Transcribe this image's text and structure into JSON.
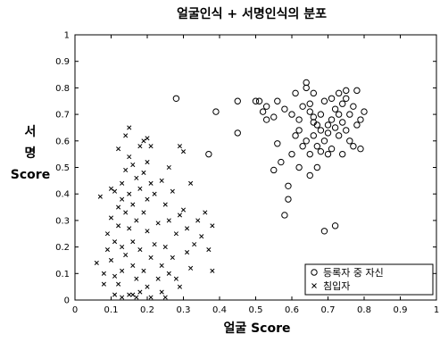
{
  "chart_data": {
    "type": "scatter",
    "title": "얼굴인식 + 서명인식의 분포",
    "xlabel": "얼굴 Score",
    "ylabel": [
      "서",
      "명",
      "Score"
    ],
    "xlim": [
      0,
      1
    ],
    "ylim": [
      0,
      1
    ],
    "x_ticks": [
      "0",
      "0.1",
      "0.2",
      "0.3",
      "0.4",
      "0.5",
      "0.6",
      "0.7",
      "0.8",
      "0.9",
      "1"
    ],
    "y_ticks": [
      "0",
      "0.1",
      "0.2",
      "0.3",
      "0.4",
      "0.5",
      "0.6",
      "0.7",
      "0.8",
      "0.9",
      "1"
    ],
    "grid": false,
    "legend_position": "bottom-right",
    "series": [
      {
        "name": "등록자 중 자신",
        "marker": "circle",
        "color": "#000000",
        "points": [
          [
            0.28,
            0.76
          ],
          [
            0.37,
            0.55
          ],
          [
            0.39,
            0.71
          ],
          [
            0.45,
            0.63
          ],
          [
            0.45,
            0.75
          ],
          [
            0.5,
            0.75
          ],
          [
            0.51,
            0.75
          ],
          [
            0.52,
            0.71
          ],
          [
            0.53,
            0.73
          ],
          [
            0.53,
            0.68
          ],
          [
            0.55,
            0.69
          ],
          [
            0.55,
            0.49
          ],
          [
            0.56,
            0.59
          ],
          [
            0.56,
            0.75
          ],
          [
            0.57,
            0.52
          ],
          [
            0.58,
            0.72
          ],
          [
            0.58,
            0.32
          ],
          [
            0.59,
            0.38
          ],
          [
            0.59,
            0.43
          ],
          [
            0.6,
            0.55
          ],
          [
            0.6,
            0.7
          ],
          [
            0.61,
            0.62
          ],
          [
            0.61,
            0.78
          ],
          [
            0.62,
            0.68
          ],
          [
            0.62,
            0.64
          ],
          [
            0.63,
            0.58
          ],
          [
            0.63,
            0.73
          ],
          [
            0.64,
            0.8
          ],
          [
            0.64,
            0.6
          ],
          [
            0.65,
            0.74
          ],
          [
            0.65,
            0.71
          ],
          [
            0.65,
            0.55
          ],
          [
            0.65,
            0.47
          ],
          [
            0.66,
            0.67
          ],
          [
            0.66,
            0.78
          ],
          [
            0.66,
            0.62
          ],
          [
            0.67,
            0.5
          ],
          [
            0.67,
            0.58
          ],
          [
            0.68,
            0.7
          ],
          [
            0.68,
            0.64
          ],
          [
            0.68,
            0.56
          ],
          [
            0.69,
            0.26
          ],
          [
            0.69,
            0.75
          ],
          [
            0.69,
            0.6
          ],
          [
            0.7,
            0.66
          ],
          [
            0.7,
            0.63
          ],
          [
            0.71,
            0.68
          ],
          [
            0.71,
            0.76
          ],
          [
            0.71,
            0.57
          ],
          [
            0.72,
            0.28
          ],
          [
            0.72,
            0.72
          ],
          [
            0.72,
            0.65
          ],
          [
            0.73,
            0.7
          ],
          [
            0.73,
            0.78
          ],
          [
            0.73,
            0.62
          ],
          [
            0.74,
            0.74
          ],
          [
            0.74,
            0.67
          ],
          [
            0.74,
            0.55
          ],
          [
            0.75,
            0.64
          ],
          [
            0.75,
            0.76
          ],
          [
            0.76,
            0.6
          ],
          [
            0.76,
            0.7
          ],
          [
            0.77,
            0.58
          ],
          [
            0.77,
            0.73
          ],
          [
            0.78,
            0.79
          ],
          [
            0.78,
            0.66
          ],
          [
            0.79,
            0.68
          ],
          [
            0.79,
            0.57
          ],
          [
            0.8,
            0.71
          ],
          [
            0.64,
            0.82
          ],
          [
            0.7,
            0.55
          ],
          [
            0.62,
            0.5
          ],
          [
            0.66,
            0.69
          ],
          [
            0.75,
            0.79
          ],
          [
            0.67,
            0.66
          ]
        ]
      },
      {
        "name": "침입자",
        "marker": "x",
        "color": "#000000",
        "points": [
          [
            0.06,
            0.14
          ],
          [
            0.07,
            0.39
          ],
          [
            0.08,
            0.1
          ],
          [
            0.08,
            0.06
          ],
          [
            0.09,
            0.25
          ],
          [
            0.09,
            0.19
          ],
          [
            0.1,
            0.42
          ],
          [
            0.1,
            0.31
          ],
          [
            0.1,
            0.15
          ],
          [
            0.11,
            0.41
          ],
          [
            0.11,
            0.22
          ],
          [
            0.11,
            0.09
          ],
          [
            0.11,
            0.02
          ],
          [
            0.12,
            0.57
          ],
          [
            0.12,
            0.35
          ],
          [
            0.12,
            0.28
          ],
          [
            0.12,
            0.06
          ],
          [
            0.13,
            0.44
          ],
          [
            0.13,
            0.38
          ],
          [
            0.13,
            0.2
          ],
          [
            0.13,
            0.11
          ],
          [
            0.13,
            0.01
          ],
          [
            0.14,
            0.62
          ],
          [
            0.14,
            0.49
          ],
          [
            0.14,
            0.33
          ],
          [
            0.14,
            0.17
          ],
          [
            0.15,
            0.65
          ],
          [
            0.15,
            0.54
          ],
          [
            0.15,
            0.4
          ],
          [
            0.15,
            0.27
          ],
          [
            0.15,
            0.02
          ],
          [
            0.16,
            0.51
          ],
          [
            0.16,
            0.36
          ],
          [
            0.16,
            0.22
          ],
          [
            0.16,
            0.13
          ],
          [
            0.16,
            0.02
          ],
          [
            0.17,
            0.46
          ],
          [
            0.17,
            0.3
          ],
          [
            0.17,
            0.08
          ],
          [
            0.17,
            0.01
          ],
          [
            0.18,
            0.58
          ],
          [
            0.18,
            0.42
          ],
          [
            0.18,
            0.19
          ],
          [
            0.18,
            0.03
          ],
          [
            0.19,
            0.6
          ],
          [
            0.19,
            0.48
          ],
          [
            0.19,
            0.33
          ],
          [
            0.19,
            0.11
          ],
          [
            0.2,
            0.61
          ],
          [
            0.2,
            0.52
          ],
          [
            0.2,
            0.38
          ],
          [
            0.2,
            0.26
          ],
          [
            0.2,
            0.05
          ],
          [
            0.21,
            0.58
          ],
          [
            0.21,
            0.44
          ],
          [
            0.21,
            0.16
          ],
          [
            0.21,
            0.01
          ],
          [
            0.22,
            0.4
          ],
          [
            0.22,
            0.21
          ],
          [
            0.23,
            0.29
          ],
          [
            0.23,
            0.08
          ],
          [
            0.24,
            0.45
          ],
          [
            0.24,
            0.13
          ],
          [
            0.24,
            0.03
          ],
          [
            0.25,
            0.36
          ],
          [
            0.25,
            0.2
          ],
          [
            0.25,
            0.01
          ],
          [
            0.26,
            0.5
          ],
          [
            0.26,
            0.3
          ],
          [
            0.26,
            0.1
          ],
          [
            0.27,
            0.41
          ],
          [
            0.27,
            0.16
          ],
          [
            0.28,
            0.25
          ],
          [
            0.28,
            0.08
          ],
          [
            0.29,
            0.32
          ],
          [
            0.29,
            0.05
          ],
          [
            0.3,
            0.56
          ],
          [
            0.3,
            0.34
          ],
          [
            0.31,
            0.18
          ],
          [
            0.31,
            0.27
          ],
          [
            0.32,
            0.44
          ],
          [
            0.32,
            0.12
          ],
          [
            0.33,
            0.21
          ],
          [
            0.34,
            0.3
          ],
          [
            0.35,
            0.24
          ],
          [
            0.36,
            0.33
          ],
          [
            0.37,
            0.19
          ],
          [
            0.38,
            0.11
          ],
          [
            0.38,
            0.28
          ],
          [
            0.29,
            0.58
          ]
        ]
      }
    ]
  }
}
